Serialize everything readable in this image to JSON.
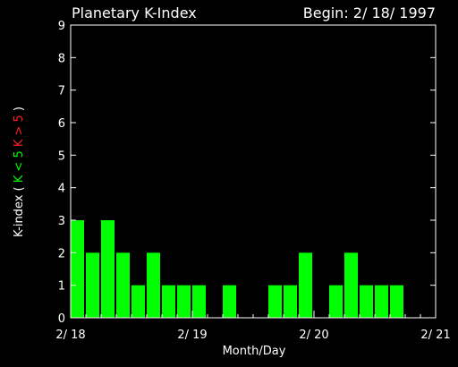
{
  "chart_data": {
    "type": "bar",
    "title": "Planetary K-Index",
    "subtitle": "Begin: 2/ 18/ 1997",
    "xlabel": "Month/Day",
    "ylabel_parts": [
      {
        "text": "K-index",
        "color": "#ffffff"
      },
      {
        "text": "(",
        "color": "#ffffff"
      },
      {
        "text": "K < 5",
        "color": "#00ff00"
      },
      {
        "text": "K > 5",
        "color": "#ff2020"
      },
      {
        "text": ")",
        "color": "#ffffff"
      }
    ],
    "ylim": [
      0,
      9
    ],
    "yticks": [
      "0",
      "1",
      "2",
      "3",
      "4",
      "5",
      "6",
      "7",
      "8",
      "9"
    ],
    "xlim": [
      0,
      24
    ],
    "xticks": [
      {
        "at": 0,
        "label": "2/ 18"
      },
      {
        "at": 8,
        "label": "2/ 19"
      },
      {
        "at": 16,
        "label": "2/ 20"
      },
      {
        "at": 24,
        "label": "2/ 21"
      }
    ],
    "bar_color_low": "#00ff00",
    "bar_color_high": "#ff2020",
    "threshold": 5,
    "values": [
      3,
      2,
      3,
      2,
      1,
      2,
      1,
      1,
      1,
      0,
      1,
      0,
      0,
      1,
      1,
      2,
      0,
      1,
      2,
      1,
      1,
      1,
      0,
      0
    ],
    "grid": false
  }
}
